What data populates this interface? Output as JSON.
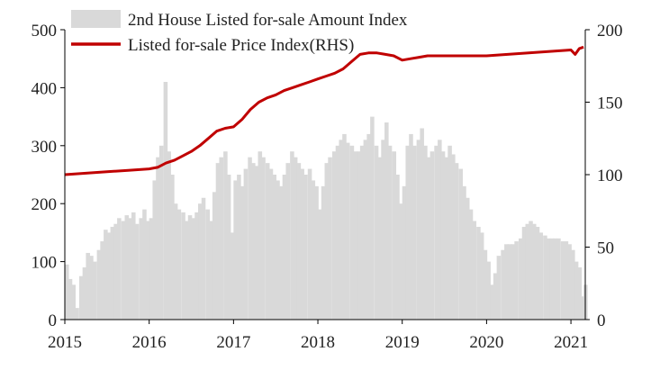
{
  "chart_data": {
    "type": "bar+line",
    "title": "",
    "x_ticks": [
      "2015",
      "2016",
      "2017",
      "2018",
      "2019",
      "2020",
      "2021"
    ],
    "x_range": [
      2015.0,
      2021.17
    ],
    "y_left": {
      "label": "",
      "ticks": [
        "0",
        "100",
        "200",
        "300",
        "400",
        "500"
      ],
      "range": [
        0,
        500
      ]
    },
    "y_right": {
      "label": "",
      "ticks": [
        "0",
        "50",
        "100",
        "150",
        "200"
      ],
      "range": [
        0,
        200
      ]
    },
    "legend": {
      "placement": "top-left",
      "entries": [
        {
          "label": "2nd House Listed for-sale Amount Index",
          "swatch": "bar"
        },
        {
          "label": "Listed for-sale Price Index(RHS)",
          "swatch": "line"
        }
      ]
    },
    "colors": {
      "bars": "#d9d9d9",
      "line": "#c00000",
      "axis": "#000000",
      "text": "#222222"
    },
    "series": [
      {
        "name": "2nd House Listed for-sale Amount Index",
        "kind": "bar",
        "axis": "left",
        "x": [
          2015.0,
          2015.04,
          2015.08,
          2015.12,
          2015.17,
          2015.21,
          2015.25,
          2015.29,
          2015.33,
          2015.38,
          2015.42,
          2015.46,
          2015.5,
          2015.54,
          2015.58,
          2015.62,
          2015.67,
          2015.71,
          2015.75,
          2015.79,
          2015.83,
          2015.88,
          2015.92,
          2015.96,
          2016.0,
          2016.04,
          2016.08,
          2016.12,
          2016.17,
          2016.21,
          2016.25,
          2016.29,
          2016.33,
          2016.38,
          2016.42,
          2016.46,
          2016.5,
          2016.54,
          2016.58,
          2016.62,
          2016.67,
          2016.71,
          2016.75,
          2016.79,
          2016.83,
          2016.88,
          2016.92,
          2016.96,
          2017.0,
          2017.04,
          2017.08,
          2017.12,
          2017.17,
          2017.21,
          2017.25,
          2017.29,
          2017.33,
          2017.38,
          2017.42,
          2017.46,
          2017.5,
          2017.54,
          2017.58,
          2017.62,
          2017.67,
          2017.71,
          2017.75,
          2017.79,
          2017.83,
          2017.88,
          2017.92,
          2017.96,
          2018.0,
          2018.04,
          2018.08,
          2018.12,
          2018.17,
          2018.21,
          2018.25,
          2018.29,
          2018.33,
          2018.38,
          2018.42,
          2018.46,
          2018.5,
          2018.54,
          2018.58,
          2018.62,
          2018.67,
          2018.71,
          2018.75,
          2018.79,
          2018.83,
          2018.88,
          2018.92,
          2018.96,
          2019.0,
          2019.04,
          2019.08,
          2019.12,
          2019.17,
          2019.21,
          2019.25,
          2019.29,
          2019.33,
          2019.38,
          2019.42,
          2019.46,
          2019.5,
          2019.54,
          2019.58,
          2019.62,
          2019.67,
          2019.71,
          2019.75,
          2019.79,
          2019.83,
          2019.88,
          2019.92,
          2019.96,
          2020.0,
          2020.04,
          2020.08,
          2020.12,
          2020.17,
          2020.21,
          2020.25,
          2020.29,
          2020.33,
          2020.38,
          2020.42,
          2020.46,
          2020.5,
          2020.54,
          2020.58,
          2020.62,
          2020.67,
          2020.71,
          2020.75,
          2020.79,
          2020.83,
          2020.88,
          2020.92,
          2020.96,
          2021.0,
          2021.04,
          2021.08,
          2021.12,
          2021.15
        ],
        "values": [
          95,
          70,
          60,
          20,
          75,
          90,
          115,
          110,
          100,
          120,
          135,
          155,
          150,
          160,
          165,
          175,
          170,
          180,
          175,
          185,
          165,
          175,
          190,
          170,
          175,
          240,
          280,
          300,
          410,
          290,
          250,
          200,
          190,
          185,
          170,
          180,
          175,
          185,
          200,
          210,
          190,
          170,
          220,
          270,
          280,
          290,
          250,
          150,
          240,
          250,
          230,
          260,
          280,
          270,
          265,
          290,
          280,
          270,
          260,
          250,
          240,
          230,
          250,
          270,
          290,
          280,
          270,
          260,
          250,
          260,
          240,
          230,
          190,
          230,
          270,
          280,
          290,
          300,
          310,
          320,
          305,
          300,
          290,
          290,
          300,
          310,
          320,
          350,
          300,
          280,
          310,
          340,
          300,
          290,
          250,
          200,
          230,
          300,
          320,
          300,
          310,
          330,
          300,
          280,
          290,
          300,
          310,
          290,
          280,
          300,
          285,
          270,
          260,
          230,
          210,
          190,
          170,
          160,
          150,
          120,
          100,
          60,
          80,
          110,
          120,
          130,
          130,
          130,
          135,
          140,
          160,
          165,
          170,
          165,
          160,
          150,
          145,
          140,
          140,
          140,
          140,
          135,
          135,
          130,
          120,
          100,
          90,
          40,
          60
        ]
      },
      {
        "name": "Listed for-sale Price Index(RHS)",
        "kind": "line",
        "axis": "right",
        "x": [
          2015.0,
          2015.25,
          2015.5,
          2015.75,
          2016.0,
          2016.1,
          2016.2,
          2016.3,
          2016.4,
          2016.5,
          2016.6,
          2016.7,
          2016.8,
          2016.9,
          2017.0,
          2017.1,
          2017.2,
          2017.3,
          2017.4,
          2017.5,
          2017.6,
          2017.7,
          2017.8,
          2017.9,
          2018.0,
          2018.1,
          2018.2,
          2018.3,
          2018.4,
          2018.5,
          2018.6,
          2018.7,
          2018.8,
          2018.9,
          2019.0,
          2019.1,
          2019.2,
          2019.3,
          2019.5,
          2019.7,
          2019.9,
          2020.0,
          2020.25,
          2020.5,
          2020.75,
          2021.0,
          2021.05,
          2021.1,
          2021.15
        ],
        "values": [
          100,
          101,
          102,
          103,
          104,
          105,
          108,
          110,
          113,
          116,
          120,
          125,
          130,
          132,
          133,
          138,
          145,
          150,
          153,
          155,
          158,
          160,
          162,
          164,
          166,
          168,
          170,
          173,
          178,
          183,
          184,
          184,
          183,
          182,
          179,
          180,
          181,
          182,
          182,
          182,
          182,
          182,
          183,
          184,
          185,
          186,
          183,
          187,
          188
        ]
      }
    ]
  }
}
